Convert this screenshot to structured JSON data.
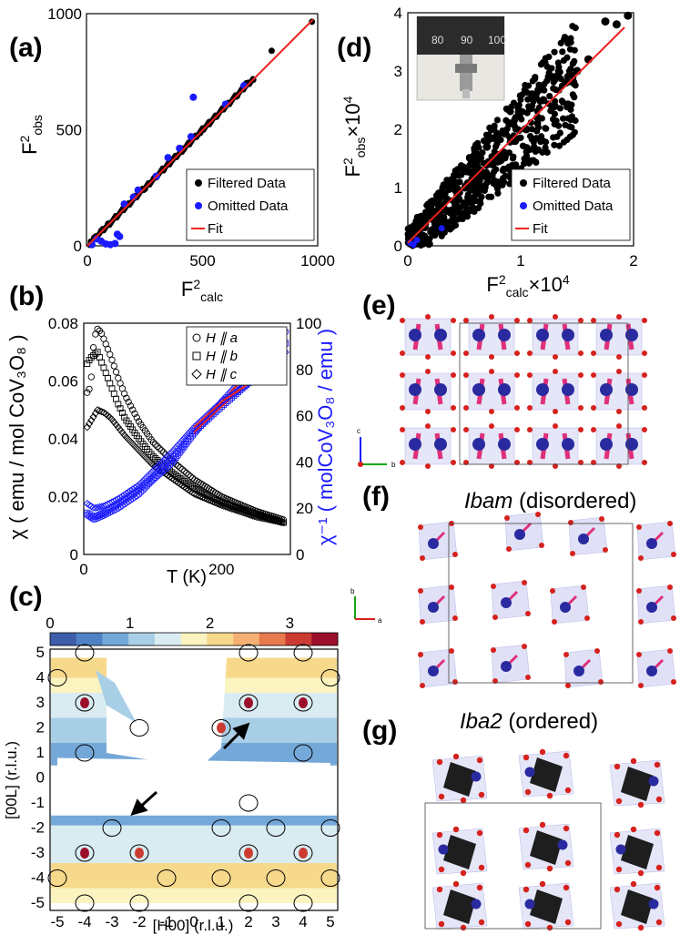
{
  "colors": {
    "filtered": "#000000",
    "omitted": "#1a1aff",
    "fit": "#e8251e",
    "blue": "#1a1aff",
    "atom_blue": "#2a2aa0",
    "atom_red": "#d6211c",
    "bond_pink": "#e0307a",
    "poly": "#c6c8ee",
    "cube": "#1e1e1e"
  },
  "labels": {
    "a": "(a)",
    "b": "(b)",
    "c": "(c)",
    "d": "(d)",
    "e": "(e)",
    "f": "(f)",
    "g": "(g)",
    "ibam_name": "Ibam",
    "ibam_suffix": " (disordered)",
    "iba2_name": "Iba2",
    "iba2_suffix": " (ordered)",
    "axis_c": "c",
    "axis_b": "b",
    "axis_a": "a"
  },
  "chart_data": [
    {
      "id": "a",
      "type": "scatter",
      "xlabel": "F²calc",
      "ylabel": "F²obs",
      "xlim": [
        0,
        1000
      ],
      "ylim": [
        0,
        1000
      ],
      "xticks": [
        "0",
        "500",
        "1000"
      ],
      "yticks": [
        "0",
        "500",
        "1000"
      ],
      "legend": [
        "Filtered Data",
        "Omitted Data",
        "Fit"
      ],
      "series": [
        {
          "name": "Filtered Data",
          "points": [
            [
              15,
              18
            ],
            [
              30,
              35
            ],
            [
              60,
              65
            ],
            [
              90,
              95
            ],
            [
              130,
              128
            ],
            [
              170,
              175
            ],
            [
              210,
              215
            ],
            [
              250,
              245
            ],
            [
              290,
              292
            ],
            [
              330,
              325
            ],
            [
              370,
              372
            ],
            [
              410,
              405
            ],
            [
              450,
              455
            ],
            [
              490,
              486
            ],
            [
              530,
              534
            ],
            [
              560,
              556
            ],
            [
              600,
              605
            ],
            [
              650,
              645
            ],
            [
              690,
              700
            ],
            [
              720,
              715
            ],
            [
              800,
              840
            ],
            [
              975,
              965
            ]
          ]
        },
        {
          "name": "Omitted Data",
          "points": [
            [
              20,
              5
            ],
            [
              40,
              30
            ],
            [
              60,
              20
            ],
            [
              80,
              8
            ],
            [
              100,
              5
            ],
            [
              120,
              10
            ],
            [
              130,
              50
            ],
            [
              140,
              40
            ],
            [
              160,
              180
            ],
            [
              200,
              210
            ],
            [
              220,
              240
            ],
            [
              300,
              300
            ],
            [
              350,
              380
            ],
            [
              400,
              420
            ],
            [
              450,
              470
            ],
            [
              460,
              640
            ],
            [
              600,
              610
            ],
            [
              680,
              690
            ]
          ]
        },
        {
          "name": "Fit",
          "points": [
            [
              0,
              0
            ],
            [
              980,
              975
            ]
          ]
        }
      ]
    },
    {
      "id": "d",
      "type": "scatter",
      "xlabel": "F²calc×10⁴",
      "ylabel": "F²obs×10⁴",
      "xlim": [
        0,
        2
      ],
      "ylim": [
        0,
        4
      ],
      "xticks": [
        "0",
        "1",
        "2"
      ],
      "yticks": [
        "0",
        "1",
        "2",
        "3",
        "4"
      ],
      "legend": [
        "Filtered Data",
        "Omitted Data",
        "Fit"
      ],
      "series": [
        {
          "name": "Filtered Data",
          "points": [
            [
              0.05,
              0.1
            ],
            [
              0.1,
              0.3
            ],
            [
              0.15,
              0.5
            ],
            [
              0.2,
              0.7
            ],
            [
              0.25,
              0.4
            ],
            [
              0.3,
              0.9
            ],
            [
              0.35,
              0.6
            ],
            [
              0.4,
              1.1
            ],
            [
              0.45,
              0.8
            ],
            [
              0.5,
              1.3
            ],
            [
              0.55,
              1.0
            ],
            [
              0.6,
              1.5
            ],
            [
              0.65,
              1.2
            ],
            [
              0.7,
              1.7
            ],
            [
              0.75,
              1.4
            ],
            [
              0.8,
              1.9
            ],
            [
              0.85,
              1.6
            ],
            [
              0.9,
              2.1
            ],
            [
              0.95,
              1.8
            ],
            [
              1.0,
              2.3
            ],
            [
              1.05,
              2.0
            ],
            [
              1.1,
              2.6
            ],
            [
              1.15,
              2.2
            ],
            [
              1.2,
              2.5
            ],
            [
              1.25,
              2.9
            ],
            [
              1.3,
              2.4
            ],
            [
              1.4,
              2.8
            ],
            [
              1.5,
              3.0
            ],
            [
              1.6,
              3.2
            ],
            [
              1.75,
              3.85
            ],
            [
              1.85,
              3.8
            ],
            [
              1.95,
              3.95
            ]
          ]
        },
        {
          "name": "Omitted Data",
          "points": [
            [
              0.02,
              0.05
            ],
            [
              0.05,
              0.02
            ],
            [
              0.08,
              0.1
            ],
            [
              0.3,
              0.3
            ]
          ]
        },
        {
          "name": "Fit",
          "points": [
            [
              0,
              0.05
            ],
            [
              1.92,
              3.75
            ]
          ]
        }
      ]
    },
    {
      "id": "b",
      "type": "line",
      "xlabel": "T (K)",
      "ylabel_left": "χ",
      "ylabel_right": "χ⁻¹",
      "ylabel_left_unit": "emu/mol CoV₃O₈",
      "ylabel_right_unit": "molCoV₃O₈/emu",
      "xlim": [
        0,
        300
      ],
      "ylim_left": [
        0,
        0.08
      ],
      "ylim_right": [
        0,
        100
      ],
      "xticks": [
        "0",
        "200"
      ],
      "yticks_left": [
        "0",
        "0.02",
        "0.04",
        "0.06",
        "0.08"
      ],
      "yticks_right": [
        "0",
        "20",
        "40",
        "60",
        "80",
        "100"
      ],
      "legend": [
        "H ∥ a",
        "H ∥ b",
        "H ∥ c"
      ],
      "series": [
        {
          "name": "H ∥ a",
          "axis": "left",
          "points": [
            [
              5,
              0.056
            ],
            [
              10,
              0.058
            ],
            [
              15,
              0.075
            ],
            [
              20,
              0.078
            ],
            [
              25,
              0.077
            ],
            [
              30,
              0.074
            ],
            [
              40,
              0.068
            ],
            [
              50,
              0.061
            ],
            [
              60,
              0.055
            ],
            [
              80,
              0.046
            ],
            [
              100,
              0.039
            ],
            [
              130,
              0.032
            ],
            [
              160,
              0.026
            ],
            [
              200,
              0.02
            ],
            [
              250,
              0.015
            ],
            [
              290,
              0.012
            ]
          ]
        },
        {
          "name": "H ∥ b",
          "axis": "left",
          "points": [
            [
              5,
              0.066
            ],
            [
              10,
              0.068
            ],
            [
              20,
              0.07
            ],
            [
              30,
              0.064
            ],
            [
              40,
              0.058
            ],
            [
              50,
              0.052
            ],
            [
              60,
              0.047
            ],
            [
              80,
              0.04
            ],
            [
              100,
              0.034
            ],
            [
              130,
              0.028
            ],
            [
              160,
              0.023
            ],
            [
              200,
              0.018
            ],
            [
              250,
              0.014
            ],
            [
              290,
              0.011
            ]
          ]
        },
        {
          "name": "H ∥ c",
          "axis": "left",
          "points": [
            [
              5,
              0.044
            ],
            [
              10,
              0.046
            ],
            [
              20,
              0.05
            ],
            [
              30,
              0.049
            ],
            [
              40,
              0.047
            ],
            [
              50,
              0.044
            ],
            [
              60,
              0.041
            ],
            [
              80,
              0.036
            ],
            [
              100,
              0.031
            ],
            [
              130,
              0.026
            ],
            [
              160,
              0.021
            ],
            [
              200,
              0.017
            ],
            [
              250,
              0.013
            ],
            [
              290,
              0.011
            ]
          ]
        },
        {
          "name": "inv a",
          "axis": "right",
          "points": [
            [
              5,
              17
            ],
            [
              15,
              15
            ],
            [
              30,
              17
            ],
            [
              50,
              20
            ],
            [
              80,
              26
            ],
            [
              100,
              32
            ],
            [
              130,
              40
            ],
            [
              160,
              52
            ],
            [
              200,
              66
            ],
            [
              250,
              82
            ],
            [
              295,
              97
            ]
          ]
        },
        {
          "name": "inv b",
          "axis": "right",
          "points": [
            [
              5,
              18
            ],
            [
              15,
              16
            ],
            [
              30,
              18
            ],
            [
              50,
              22
            ],
            [
              80,
              28
            ],
            [
              100,
              33
            ],
            [
              130,
              42
            ],
            [
              160,
              53
            ],
            [
              200,
              64
            ],
            [
              250,
              77
            ],
            [
              295,
              92
            ]
          ]
        },
        {
          "name": "inv c",
          "axis": "right",
          "points": [
            [
              5,
              22
            ],
            [
              15,
              20
            ],
            [
              30,
              21
            ],
            [
              50,
              24
            ],
            [
              80,
              30
            ],
            [
              100,
              36
            ],
            [
              130,
              45
            ],
            [
              160,
              55
            ],
            [
              200,
              66
            ],
            [
              250,
              76
            ],
            [
              295,
              88
            ]
          ]
        }
      ]
    },
    {
      "id": "c",
      "type": "heatmap",
      "xlabel": "[H00] (r.l.u.)",
      "ylabel": "[00L] (r.l.u.)",
      "xlim": [
        -5,
        5
      ],
      "ylim": [
        -5,
        5
      ],
      "xticks": [
        "-5",
        "-4",
        "-3",
        "-2",
        "-1",
        "0",
        "1",
        "2",
        "3",
        "4",
        "5"
      ],
      "yticks": [
        "5",
        "4",
        "3",
        "2",
        "1",
        "0",
        "-1",
        "-2",
        "-3",
        "-4",
        "-5"
      ],
      "colorbar_ticks": [
        "0",
        "1",
        "2",
        "3"
      ],
      "colorbar_range": [
        0,
        3.6
      ],
      "colormap": [
        "#3d5da8",
        "#4f82c4",
        "#74a8d8",
        "#a9cfe6",
        "#d9ecf2",
        "#fbf3c0",
        "#f7d98b",
        "#f4b173",
        "#e87a4f",
        "#cc3b32",
        "#9c0f2a"
      ]
    }
  ]
}
